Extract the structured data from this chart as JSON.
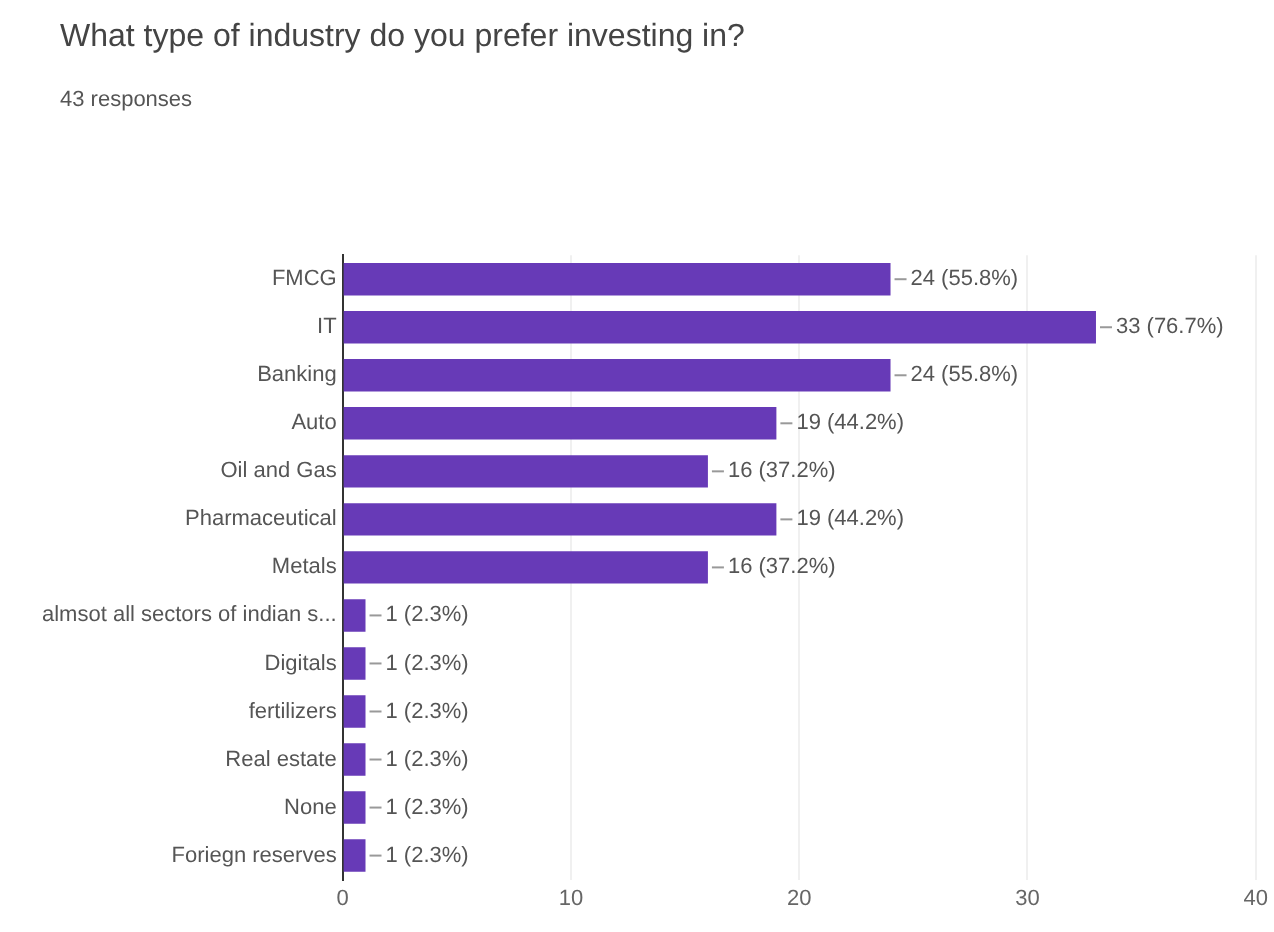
{
  "chart_data": {
    "type": "bar",
    "orientation": "horizontal",
    "title": "What type of industry do you prefer investing in?",
    "subtitle": "43 responses",
    "categories": [
      "FMCG",
      "IT",
      "Banking",
      "Auto",
      "Oil and Gas",
      "Pharmaceutical",
      "Metals",
      "almsot all sectors of indian s...",
      "Digitals",
      "fertilizers",
      "Real estate",
      "None",
      "Foriegn reserves"
    ],
    "values": [
      24,
      33,
      24,
      19,
      16,
      19,
      16,
      1,
      1,
      1,
      1,
      1,
      1
    ],
    "value_labels": [
      "24 (55.8%)",
      "33 (76.7%)",
      "24 (55.8%)",
      "19 (44.2%)",
      "16 (37.2%)",
      "19 (44.2%)",
      "16 (37.2%)",
      "1 (2.3%)",
      "1 (2.3%)",
      "1 (2.3%)",
      "1 (2.3%)",
      "1 (2.3%)",
      "1 (2.3%)"
    ],
    "color": "#673ab7",
    "xlim": [
      0,
      40
    ],
    "xticks": [
      0,
      10,
      20,
      30,
      40
    ],
    "grid": "x",
    "legend": false
  }
}
